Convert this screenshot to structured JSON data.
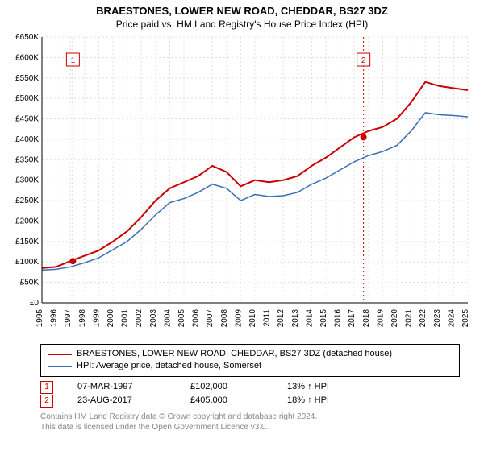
{
  "title": {
    "line1": "BRAESTONES, LOWER NEW ROAD, CHEDDAR, BS27 3DZ",
    "line2": "Price paid vs. HM Land Registry's House Price Index (HPI)"
  },
  "chart": {
    "type": "line",
    "xlim": [
      1995,
      2025
    ],
    "ylim": [
      0,
      650000
    ],
    "ytick_step": 50000,
    "ytick_prefix": "£",
    "ytick_suffix": "K",
    "xtick_step": 1,
    "background_color": "#ffffff",
    "grid_color": "#e0e0e0",
    "grid_dash": "2,3",
    "axis_color": "#000000",
    "label_fontsize": 10,
    "series": [
      {
        "name": "BRAESTONES, LOWER NEW ROAD, CHEDDAR, BS27 3DZ (detached house)",
        "color": "#cc0000",
        "width": 2,
        "points": [
          [
            1995,
            85000
          ],
          [
            1996,
            88000
          ],
          [
            1997,
            102000
          ],
          [
            1998,
            115000
          ],
          [
            1999,
            128000
          ],
          [
            2000,
            150000
          ],
          [
            2001,
            175000
          ],
          [
            2002,
            210000
          ],
          [
            2003,
            250000
          ],
          [
            2004,
            280000
          ],
          [
            2005,
            295000
          ],
          [
            2006,
            310000
          ],
          [
            2007,
            335000
          ],
          [
            2008,
            320000
          ],
          [
            2009,
            285000
          ],
          [
            2010,
            300000
          ],
          [
            2011,
            295000
          ],
          [
            2012,
            300000
          ],
          [
            2013,
            310000
          ],
          [
            2014,
            335000
          ],
          [
            2015,
            355000
          ],
          [
            2016,
            380000
          ],
          [
            2017,
            405000
          ],
          [
            2018,
            420000
          ],
          [
            2019,
            430000
          ],
          [
            2020,
            450000
          ],
          [
            2021,
            490000
          ],
          [
            2022,
            540000
          ],
          [
            2023,
            530000
          ],
          [
            2024,
            525000
          ],
          [
            2025,
            520000
          ]
        ]
      },
      {
        "name": "HPI: Average price, detached house, Somerset",
        "color": "#3a6fb7",
        "width": 1.5,
        "points": [
          [
            1995,
            80000
          ],
          [
            1996,
            82000
          ],
          [
            1997,
            88000
          ],
          [
            1998,
            98000
          ],
          [
            1999,
            110000
          ],
          [
            2000,
            130000
          ],
          [
            2001,
            150000
          ],
          [
            2002,
            180000
          ],
          [
            2003,
            215000
          ],
          [
            2004,
            245000
          ],
          [
            2005,
            255000
          ],
          [
            2006,
            270000
          ],
          [
            2007,
            290000
          ],
          [
            2008,
            280000
          ],
          [
            2009,
            250000
          ],
          [
            2010,
            265000
          ],
          [
            2011,
            260000
          ],
          [
            2012,
            262000
          ],
          [
            2013,
            270000
          ],
          [
            2014,
            290000
          ],
          [
            2015,
            305000
          ],
          [
            2016,
            325000
          ],
          [
            2017,
            345000
          ],
          [
            2018,
            360000
          ],
          [
            2019,
            370000
          ],
          [
            2020,
            385000
          ],
          [
            2021,
            420000
          ],
          [
            2022,
            465000
          ],
          [
            2023,
            460000
          ],
          [
            2024,
            458000
          ],
          [
            2025,
            455000
          ]
        ]
      }
    ],
    "sale_markers": [
      {
        "n": "1",
        "x": 1997.18,
        "y": 102000,
        "color": "#cc0000"
      },
      {
        "n": "2",
        "x": 2017.65,
        "y": 405000,
        "color": "#cc0000"
      }
    ],
    "sale_vline_color": "#cc0000",
    "sale_vline_dash": "2,3"
  },
  "legend": {
    "border_color": "#000000",
    "items": [
      {
        "color": "#cc0000",
        "label": "BRAESTONES, LOWER NEW ROAD, CHEDDAR, BS27 3DZ (detached house)"
      },
      {
        "color": "#3a6fb7",
        "label": "HPI: Average price, detached house, Somerset"
      }
    ]
  },
  "sales": [
    {
      "n": "1",
      "date": "07-MAR-1997",
      "price": "£102,000",
      "delta": "13% ↑ HPI",
      "color": "#cc0000"
    },
    {
      "n": "2",
      "date": "23-AUG-2017",
      "price": "£405,000",
      "delta": "18% ↑ HPI",
      "color": "#cc0000"
    }
  ],
  "footnote": {
    "line1": "Contains HM Land Registry data © Crown copyright and database right 2024.",
    "line2": "This data is licensed under the Open Government Licence v3.0."
  }
}
